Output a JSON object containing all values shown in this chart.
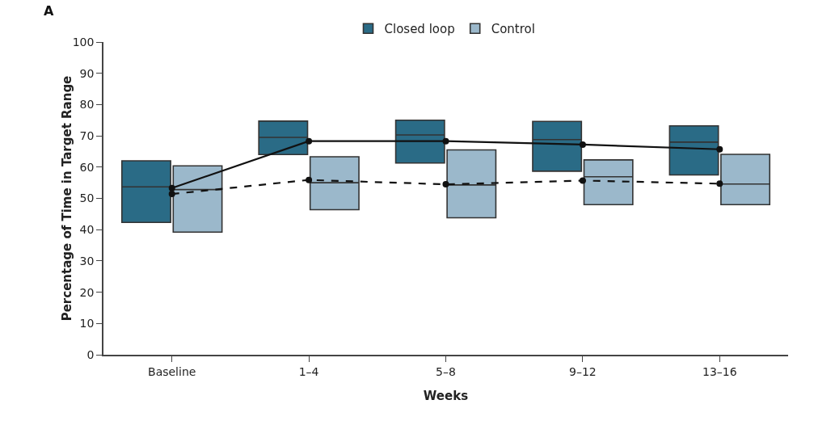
{
  "chart_data": {
    "type": "box",
    "xlabel": "Weeks",
    "ylabel": "Percentage of Time in Target Range",
    "annotations": [
      "A"
    ],
    "categories": [
      "Baseline",
      "1–4",
      "5–8",
      "9–12",
      "13–16"
    ],
    "ylim": [
      0,
      100
    ],
    "yticks": [
      0,
      10,
      20,
      30,
      40,
      50,
      60,
      70,
      80,
      90,
      100
    ],
    "grid": false,
    "legend": "top",
    "series": [
      {
        "name": "Closed loop",
        "color": "#2a6b86",
        "boxes": [
          {
            "low": 42.3,
            "q1": 42.3,
            "median": 53.7,
            "q3": 62,
            "high": 62
          },
          {
            "low": 64,
            "q1": 64,
            "median": 69.5,
            "q3": 74.7,
            "high": 74.7
          },
          {
            "low": 61.3,
            "q1": 61.3,
            "median": 70.3,
            "q3": 75,
            "high": 75
          },
          {
            "low": 58.7,
            "q1": 58.7,
            "median": 68.8,
            "q3": 74.6,
            "high": 74.6
          },
          {
            "low": 57.5,
            "q1": 57.5,
            "median": 68,
            "q3": 73.2,
            "high": 73.2
          }
        ]
      },
      {
        "name": "Control",
        "color": "#9bb8cb",
        "boxes": [
          {
            "low": 39.2,
            "q1": 39.2,
            "median": 52.8,
            "q3": 60.4,
            "high": 60.4
          },
          {
            "low": 46.4,
            "q1": 46.4,
            "median": 55,
            "q3": 63.3,
            "high": 63.3
          },
          {
            "low": 43.8,
            "q1": 43.8,
            "median": 54.3,
            "q3": 65.5,
            "high": 65.5
          },
          {
            "low": 48,
            "q1": 48,
            "median": 56.9,
            "q3": 62.3,
            "high": 62.3
          },
          {
            "low": 48,
            "q1": 48,
            "median": 54.6,
            "q3": 64.1,
            "high": 64.1
          }
        ]
      },
      {
        "type": "line",
        "color": "#111111",
        "line_style": "solid",
        "marker": "circle",
        "values": [
          53.3,
          68.3,
          68.3,
          67.2,
          65.7
        ]
      },
      {
        "type": "line",
        "color": "#111111",
        "line_style": "dashed",
        "marker": "circle",
        "values": [
          51.4,
          55.9,
          54.5,
          55.7,
          54.7
        ]
      }
    ]
  }
}
